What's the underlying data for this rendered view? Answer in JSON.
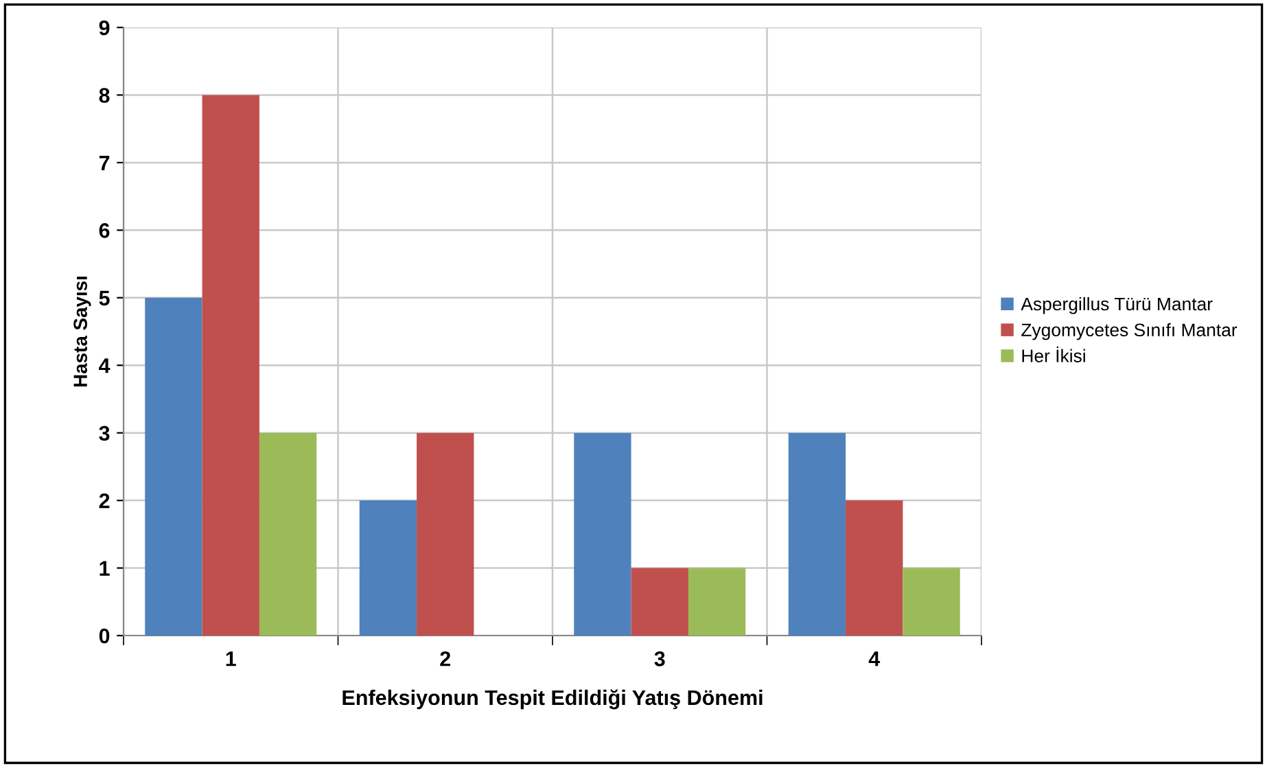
{
  "chart_data": {
    "type": "bar",
    "xlabel": "Enfeksiyonun Tespit Edildiği Yatış Dönemi",
    "ylabel": "Hasta Sayısı",
    "categories": [
      "1",
      "2",
      "3",
      "4"
    ],
    "series": [
      {
        "name": "Aspergillus Türü Mantar",
        "color": "#4f81bd",
        "values": [
          5,
          2,
          3,
          3
        ]
      },
      {
        "name": "Zygomycetes Sınıfı Mantar",
        "color": "#c0504d",
        "values": [
          8,
          3,
          1,
          2
        ]
      },
      {
        "name": "Her İkisi",
        "color": "#9bbb59",
        "values": [
          3,
          0,
          1,
          1
        ]
      }
    ],
    "ylim": [
      0,
      9
    ],
    "yticks": [
      0,
      1,
      2,
      3,
      4,
      5,
      6,
      7,
      8,
      9
    ],
    "grid": true,
    "legend": "right"
  }
}
